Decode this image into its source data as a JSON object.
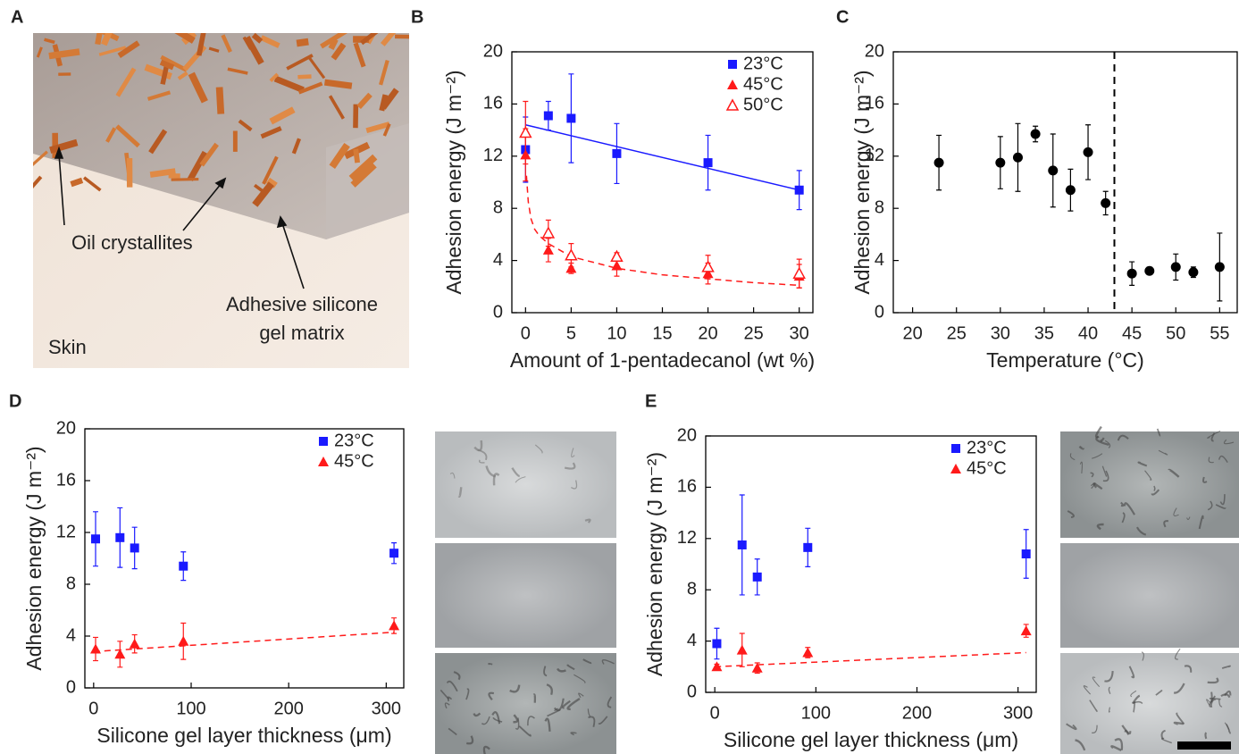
{
  "illustration": {
    "panel": "A",
    "crystal_label": "Oil crystallites",
    "matrix_label": [
      "Adhesive silicone",
      "gel matrix"
    ],
    "skin_label": "Skin"
  },
  "chart_data": [
    {
      "type": "scatter",
      "panel": "B",
      "xlabel": "Amount of 1-pentadecanol (wt %)",
      "ylabel": "Adhesion energy (J m⁻²)",
      "xlim": [
        -1.5,
        31.5
      ],
      "xticks": [
        0,
        5,
        10,
        15,
        20,
        25,
        30
      ],
      "ylim": [
        0,
        20
      ],
      "yticks": [
        0,
        4,
        8,
        12,
        16,
        20
      ],
      "grid": false,
      "legend": "upper right",
      "series": [
        {
          "name": "23°C",
          "color": "#1a1aff",
          "marker": "square",
          "x": [
            0,
            2.5,
            5,
            10,
            20,
            30
          ],
          "values": [
            12.5,
            15.1,
            14.9,
            12.2,
            11.5,
            9.4
          ],
          "errors": [
            2.5,
            1.1,
            3.4,
            2.3,
            2.1,
            1.5
          ]
        },
        {
          "name": "45°C",
          "color": "#ff1a1a",
          "marker": "triangle",
          "x": [
            0,
            2.5,
            5,
            10,
            20,
            30
          ],
          "values": [
            12.1,
            4.8,
            3.4,
            3.6,
            3.0,
            2.8
          ],
          "errors": [
            2.0,
            0.9,
            0.4,
            0.8,
            0.8,
            0.9
          ]
        },
        {
          "name": "50°C",
          "color": "#ff1a1a",
          "marker": "triangle-open",
          "x": [
            0,
            2.5,
            5,
            10,
            20,
            30
          ],
          "values": [
            13.8,
            6.1,
            4.4,
            4.3,
            3.5,
            3.0
          ],
          "errors": [
            2.4,
            1.0,
            0.9,
            0.3,
            0.9,
            1.1
          ]
        }
      ],
      "fits": [
        {
          "color": "#1a1aff",
          "dashed": false,
          "x": [
            0,
            30
          ],
          "values": [
            14.4,
            9.4
          ]
        },
        {
          "color": "#ff1a1a",
          "dashed": true,
          "x": [
            0.1,
            0.3,
            0.6,
            1,
            1.5,
            2.5,
            5,
            10,
            15,
            20,
            25,
            30
          ],
          "values": [
            10.5,
            8.5,
            7.2,
            6.4,
            5.9,
            5.3,
            4.3,
            3.4,
            2.9,
            2.6,
            2.3,
            2.1
          ]
        }
      ]
    },
    {
      "type": "scatter",
      "panel": "C",
      "xlabel": "Temperature (°C)",
      "ylabel": "Adhesion energy (J m⁻²)",
      "xlim": [
        17.8,
        57
      ],
      "xticks": [
        20,
        25,
        30,
        35,
        40,
        45,
        50,
        55
      ],
      "ylim": [
        0,
        20
      ],
      "yticks": [
        0,
        4,
        8,
        12,
        16,
        20
      ],
      "grid": false,
      "vline": 43,
      "series": [
        {
          "color": "#000000",
          "marker": "circle",
          "x": [
            23,
            30,
            32,
            34,
            36,
            38,
            40,
            42,
            45,
            47,
            50,
            52,
            55
          ],
          "values": [
            11.5,
            11.5,
            11.9,
            13.7,
            10.9,
            9.4,
            12.3,
            8.4,
            3.0,
            3.2,
            3.5,
            3.1,
            3.5
          ],
          "errors": [
            2.1,
            2.0,
            2.6,
            0.6,
            2.8,
            1.6,
            2.1,
            0.9,
            0.9,
            0.2,
            1.0,
            0.4,
            2.6
          ]
        }
      ]
    },
    {
      "type": "scatter",
      "panel": "D",
      "xlabel": "Silicone gel layer thickness (μm)",
      "ylabel": "Adhesion energy (J m⁻²)",
      "xlim": [
        -9,
        318
      ],
      "xticks": [
        0,
        100,
        200,
        300
      ],
      "ylim": [
        0,
        20
      ],
      "yticks": [
        0,
        4,
        8,
        12,
        16,
        20
      ],
      "grid": false,
      "legend": "upper right",
      "series": [
        {
          "name": "23°C",
          "color": "#1a1aff",
          "marker": "square",
          "x": [
            2,
            27,
            42,
            92,
            308
          ],
          "values": [
            11.5,
            11.6,
            10.8,
            9.4,
            10.4
          ],
          "errors": [
            2.1,
            2.3,
            1.6,
            1.1,
            0.8
          ]
        },
        {
          "name": "45°C",
          "color": "#ff1a1a",
          "marker": "triangle",
          "x": [
            2,
            27,
            42,
            92,
            308
          ],
          "values": [
            3.0,
            2.6,
            3.4,
            3.6,
            4.8
          ],
          "errors": [
            0.9,
            1.0,
            0.7,
            1.4,
            0.6
          ]
        }
      ],
      "fits": [
        {
          "color": "#ff1a1a",
          "dashed": true,
          "x": [
            0,
            308
          ],
          "values": [
            2.8,
            4.3
          ]
        }
      ]
    },
    {
      "type": "scatter",
      "panel": "E",
      "xlabel": "Silicone gel layer thickness (μm)",
      "ylabel": "Adhesion energy (J m⁻²)",
      "xlim": [
        -9,
        318
      ],
      "xticks": [
        0,
        100,
        200,
        300
      ],
      "ylim": [
        0,
        20
      ],
      "yticks": [
        0,
        4,
        8,
        12,
        16,
        20
      ],
      "grid": false,
      "legend": "upper right",
      "series": [
        {
          "name": "23°C",
          "color": "#1a1aff",
          "marker": "square",
          "x": [
            2,
            27,
            42,
            92,
            308
          ],
          "values": [
            3.8,
            11.5,
            9.0,
            11.3,
            10.8
          ],
          "errors": [
            1.2,
            3.9,
            1.4,
            1.5,
            1.9
          ]
        },
        {
          "name": "45°C",
          "color": "#ff1a1a",
          "marker": "triangle",
          "x": [
            2,
            27,
            42,
            92,
            308
          ],
          "values": [
            2.0,
            3.3,
            1.9,
            3.1,
            4.8
          ],
          "errors": [
            0.2,
            1.3,
            0.4,
            0.4,
            0.5
          ]
        }
      ],
      "fits": [
        {
          "color": "#ff1a1a",
          "dashed": true,
          "x": [
            0,
            308
          ],
          "values": [
            2.0,
            3.1
          ]
        }
      ]
    }
  ]
}
